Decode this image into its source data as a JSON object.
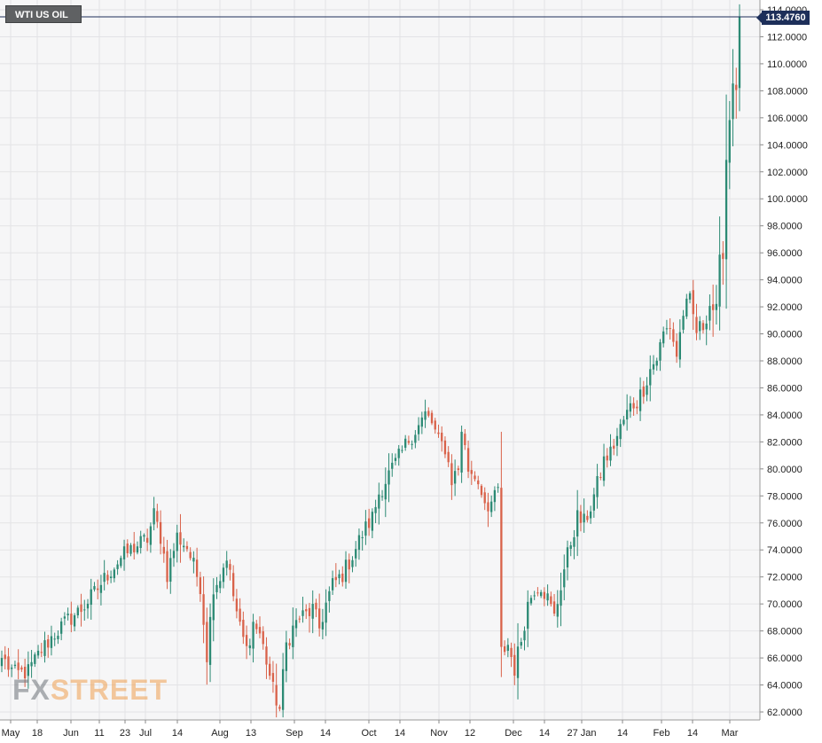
{
  "symbol": "WTI US OIL",
  "watermark": {
    "part1": "FX",
    "part2": "STREET"
  },
  "last_price": "113.4760",
  "colors": {
    "up": "#2c8a74",
    "down": "#d9624a",
    "grid": "#e3e3e6",
    "last_price_line": "#1d2f5a",
    "axis_text": "#222222"
  },
  "chart_data": {
    "type": "candlestick",
    "title": "WTI US OIL",
    "ylim": [
      62,
      114
    ],
    "y_ticks": [
      "62.0000",
      "64.0000",
      "66.0000",
      "68.0000",
      "70.0000",
      "72.0000",
      "74.0000",
      "76.0000",
      "78.0000",
      "80.0000",
      "82.0000",
      "84.0000",
      "86.0000",
      "88.0000",
      "90.0000",
      "92.0000",
      "94.0000",
      "96.0000",
      "98.0000",
      "100.0000",
      "102.0000",
      "104.0000",
      "106.0000",
      "108.0000",
      "110.0000",
      "112.0000",
      "114.0000"
    ],
    "x_ticks": [
      "May",
      "18",
      "Jun",
      "11",
      "23",
      "Jul",
      "14",
      "Aug",
      "13",
      "Sep",
      "14",
      "Oct",
      "14",
      "Nov",
      "12",
      "Dec",
      "14",
      "27 Jan",
      "14",
      "Feb",
      "14",
      "Mar"
    ],
    "grid": true,
    "last_price": 113.476,
    "anchors": [
      [
        0,
        66.0
      ],
      [
        4,
        64.8
      ],
      [
        8,
        65.0
      ],
      [
        12,
        66.6
      ],
      [
        16,
        67.8
      ],
      [
        20,
        68.8
      ],
      [
        24,
        69.6
      ],
      [
        28,
        70.8
      ],
      [
        32,
        72.2
      ],
      [
        36,
        73.4
      ],
      [
        40,
        74.2
      ],
      [
        44,
        74.8
      ],
      [
        46,
        76.6
      ],
      [
        48,
        75.0
      ],
      [
        50,
        72.2
      ],
      [
        53,
        75.0
      ],
      [
        56,
        74.2
      ],
      [
        60,
        71.4
      ],
      [
        62,
        66.2
      ],
      [
        64,
        71.4
      ],
      [
        66,
        72.0
      ],
      [
        68,
        73.6
      ],
      [
        70,
        70.6
      ],
      [
        72,
        68.2
      ],
      [
        74,
        66.6
      ],
      [
        76,
        68.6
      ],
      [
        78,
        67.8
      ],
      [
        80,
        65.8
      ],
      [
        82,
        63.6
      ],
      [
        84,
        62.2
      ],
      [
        86,
        67.0
      ],
      [
        88,
        68.2
      ],
      [
        90,
        69.0
      ],
      [
        92,
        69.2
      ],
      [
        94,
        69.6
      ],
      [
        96,
        68.2
      ],
      [
        98,
        70.0
      ],
      [
        100,
        71.4
      ],
      [
        103,
        72.2
      ],
      [
        106,
        73.6
      ],
      [
        109,
        75.2
      ],
      [
        112,
        76.4
      ],
      [
        114,
        78.2
      ],
      [
        117,
        79.6
      ],
      [
        120,
        80.8
      ],
      [
        123,
        82.2
      ],
      [
        126,
        83.2
      ],
      [
        128,
        84.0
      ],
      [
        130,
        83.4
      ],
      [
        132,
        82.0
      ],
      [
        134,
        81.6
      ],
      [
        136,
        79.2
      ],
      [
        138,
        80.0
      ],
      [
        139,
        83.0
      ],
      [
        141,
        80.0
      ],
      [
        143,
        79.6
      ],
      [
        145,
        78.6
      ],
      [
        147,
        76.2
      ],
      [
        149,
        78.4
      ],
      [
        150,
        78.2
      ],
      [
        151,
        66.4
      ],
      [
        153,
        67.0
      ],
      [
        155,
        65.2
      ],
      [
        157,
        67.4
      ],
      [
        159,
        70.0
      ],
      [
        161,
        71.2
      ],
      [
        163,
        71.4
      ],
      [
        165,
        70.4
      ],
      [
        167,
        69.0
      ],
      [
        168,
        70.2
      ],
      [
        170,
        72.6
      ],
      [
        172,
        74.6
      ],
      [
        174,
        76.4
      ],
      [
        176,
        76.0
      ],
      [
        178,
        77.2
      ],
      [
        180,
        78.8
      ],
      [
        182,
        80.6
      ],
      [
        184,
        81.2
      ],
      [
        186,
        82.4
      ],
      [
        188,
        83.6
      ],
      [
        190,
        84.6
      ],
      [
        192,
        85.0
      ],
      [
        194,
        86.0
      ],
      [
        196,
        87.4
      ],
      [
        198,
        88.2
      ],
      [
        200,
        90.0
      ],
      [
        202,
        90.6
      ],
      [
        204,
        88.4
      ],
      [
        206,
        91.6
      ],
      [
        208,
        92.4
      ],
      [
        210,
        90.2
      ],
      [
        212,
        90.6
      ],
      [
        214,
        92.2
      ],
      [
        216,
        91.6
      ],
      [
        217,
        95.2
      ],
      [
        218,
        96.2
      ],
      [
        219,
        103.0
      ],
      [
        220,
        106.0
      ],
      [
        221,
        109.0
      ],
      [
        222,
        107.5
      ],
      [
        223,
        113.48
      ]
    ]
  }
}
